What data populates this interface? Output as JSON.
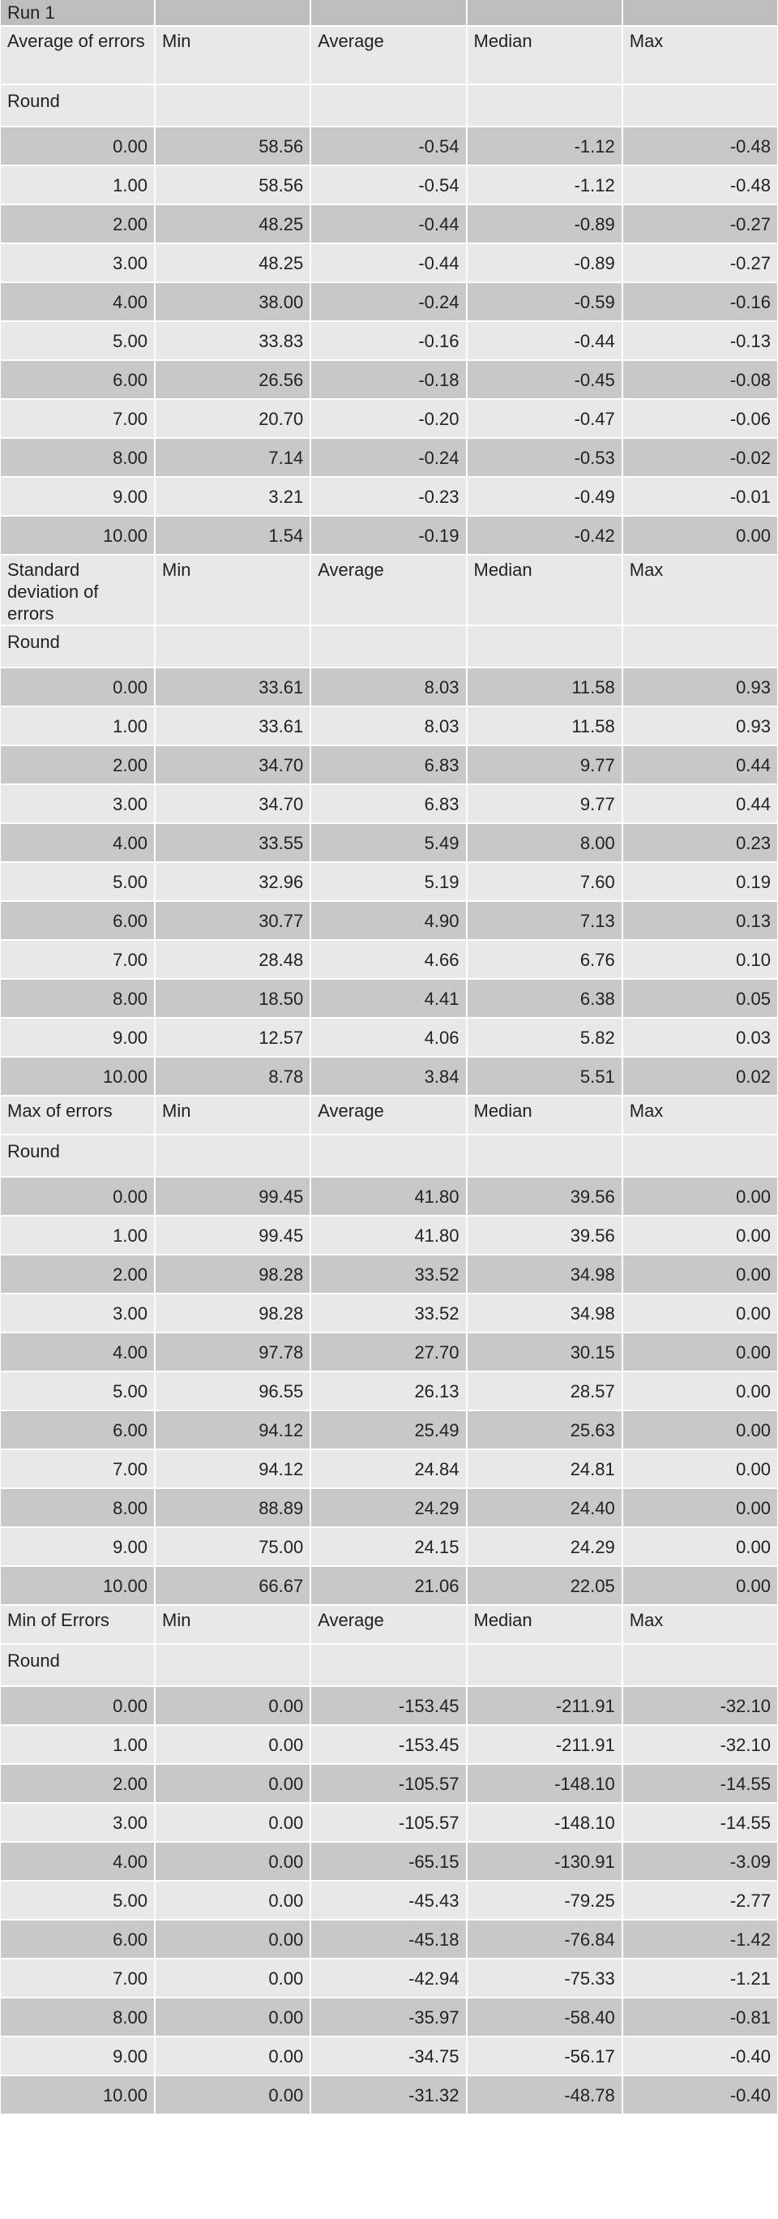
{
  "title": "Run 1",
  "round_label": "Round",
  "columns": [
    "Min",
    "Average",
    "Median",
    "Max"
  ],
  "sections": [
    {
      "label": "Average of errors",
      "rows": [
        [
          "0.00",
          "58.56",
          "-0.54",
          "-1.12",
          "-0.48"
        ],
        [
          "1.00",
          "58.56",
          "-0.54",
          "-1.12",
          "-0.48"
        ],
        [
          "2.00",
          "48.25",
          "-0.44",
          "-0.89",
          "-0.27"
        ],
        [
          "3.00",
          "48.25",
          "-0.44",
          "-0.89",
          "-0.27"
        ],
        [
          "4.00",
          "38.00",
          "-0.24",
          "-0.59",
          "-0.16"
        ],
        [
          "5.00",
          "33.83",
          "-0.16",
          "-0.44",
          "-0.13"
        ],
        [
          "6.00",
          "26.56",
          "-0.18",
          "-0.45",
          "-0.08"
        ],
        [
          "7.00",
          "20.70",
          "-0.20",
          "-0.47",
          "-0.06"
        ],
        [
          "8.00",
          "7.14",
          "-0.24",
          "-0.53",
          "-0.02"
        ],
        [
          "9.00",
          "3.21",
          "-0.23",
          "-0.49",
          "-0.01"
        ],
        [
          "10.00",
          "1.54",
          "-0.19",
          "-0.42",
          "0.00"
        ]
      ]
    },
    {
      "label": "Standard deviation of errors",
      "rows": [
        [
          "0.00",
          "33.61",
          "8.03",
          "11.58",
          "0.93"
        ],
        [
          "1.00",
          "33.61",
          "8.03",
          "11.58",
          "0.93"
        ],
        [
          "2.00",
          "34.70",
          "6.83",
          "9.77",
          "0.44"
        ],
        [
          "3.00",
          "34.70",
          "6.83",
          "9.77",
          "0.44"
        ],
        [
          "4.00",
          "33.55",
          "5.49",
          "8.00",
          "0.23"
        ],
        [
          "5.00",
          "32.96",
          "5.19",
          "7.60",
          "0.19"
        ],
        [
          "6.00",
          "30.77",
          "4.90",
          "7.13",
          "0.13"
        ],
        [
          "7.00",
          "28.48",
          "4.66",
          "6.76",
          "0.10"
        ],
        [
          "8.00",
          "18.50",
          "4.41",
          "6.38",
          "0.05"
        ],
        [
          "9.00",
          "12.57",
          "4.06",
          "5.82",
          "0.03"
        ],
        [
          "10.00",
          "8.78",
          "3.84",
          "5.51",
          "0.02"
        ]
      ]
    },
    {
      "label": "Max of errors",
      "rows": [
        [
          "0.00",
          "99.45",
          "41.80",
          "39.56",
          "0.00"
        ],
        [
          "1.00",
          "99.45",
          "41.80",
          "39.56",
          "0.00"
        ],
        [
          "2.00",
          "98.28",
          "33.52",
          "34.98",
          "0.00"
        ],
        [
          "3.00",
          "98.28",
          "33.52",
          "34.98",
          "0.00"
        ],
        [
          "4.00",
          "97.78",
          "27.70",
          "30.15",
          "0.00"
        ],
        [
          "5.00",
          "96.55",
          "26.13",
          "28.57",
          "0.00"
        ],
        [
          "6.00",
          "94.12",
          "25.49",
          "25.63",
          "0.00"
        ],
        [
          "7.00",
          "94.12",
          "24.84",
          "24.81",
          "0.00"
        ],
        [
          "8.00",
          "88.89",
          "24.29",
          "24.40",
          "0.00"
        ],
        [
          "9.00",
          "75.00",
          "24.15",
          "24.29",
          "0.00"
        ],
        [
          "10.00",
          "66.67",
          "21.06",
          "22.05",
          "0.00"
        ]
      ]
    },
    {
      "label": "Min of Errors",
      "rows": [
        [
          "0.00",
          "0.00",
          "-153.45",
          "-211.91",
          "-32.10"
        ],
        [
          "1.00",
          "0.00",
          "-153.45",
          "-211.91",
          "-32.10"
        ],
        [
          "2.00",
          "0.00",
          "-105.57",
          "-148.10",
          "-14.55"
        ],
        [
          "3.00",
          "0.00",
          "-105.57",
          "-148.10",
          "-14.55"
        ],
        [
          "4.00",
          "0.00",
          "-65.15",
          "-130.91",
          "-3.09"
        ],
        [
          "5.00",
          "0.00",
          "-45.43",
          "-79.25",
          "-2.77"
        ],
        [
          "6.00",
          "0.00",
          "-45.18",
          "-76.84",
          "-1.42"
        ],
        [
          "7.00",
          "0.00",
          "-42.94",
          "-75.33",
          "-1.21"
        ],
        [
          "8.00",
          "0.00",
          "-35.97",
          "-58.40",
          "-0.81"
        ],
        [
          "9.00",
          "0.00",
          "-34.75",
          "-56.17",
          "-0.40"
        ],
        [
          "10.00",
          "0.00",
          "-31.32",
          "-48.78",
          "-0.40"
        ]
      ]
    }
  ]
}
